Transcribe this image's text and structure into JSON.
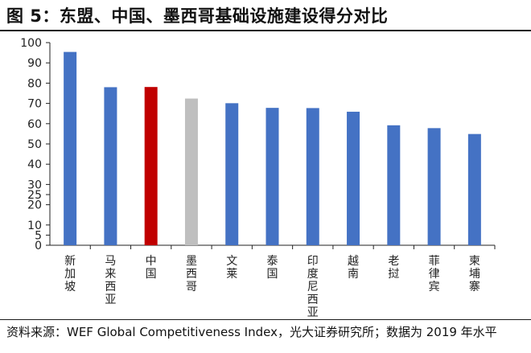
{
  "title": "图 5：东盟、中国、墨西哥基础设施建设得分对比",
  "source": "资料来源：WEF Global Competitiveness Index，光大证券研究所；数据为 2019 年水平",
  "colors": {
    "default": "#4472C4",
    "highlight": "#C00000",
    "muted": "#BFBFBF"
  },
  "chart_data": {
    "type": "bar",
    "categories": [
      "新加坡",
      "马来西亚",
      "中国",
      "墨西哥",
      "文莱",
      "泰国",
      "印度尼西亚",
      "越南",
      "老挝",
      "菲律宾",
      "柬埔寨"
    ],
    "values": [
      95.4,
      78.0,
      78.1,
      72.4,
      70.1,
      67.8,
      67.7,
      65.9,
      59.2,
      57.8,
      54.9
    ],
    "bar_colors": [
      "default",
      "default",
      "highlight",
      "muted",
      "default",
      "default",
      "default",
      "default",
      "default",
      "default",
      "default"
    ],
    "ylim": [
      0,
      100
    ],
    "yticks": [
      0,
      5,
      10,
      20,
      25,
      30,
      40,
      50,
      60,
      70,
      80,
      90,
      100
    ],
    "ytick_labels": [
      "0",
      "5",
      "10",
      "20",
      "25",
      "30",
      "40",
      "50",
      "60",
      "70",
      "80",
      "90",
      "100"
    ],
    "grid": false,
    "legend": "none"
  }
}
